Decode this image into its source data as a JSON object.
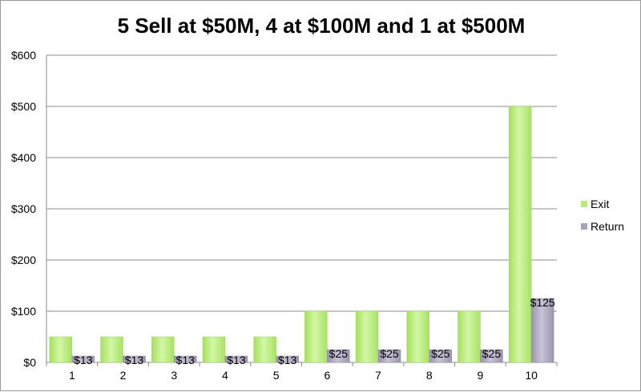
{
  "chart_data": {
    "type": "bar",
    "title": "5 Sell at $50M, 4 at $100M and 1 at $500M",
    "xlabel": "",
    "ylabel": "",
    "categories": [
      "1",
      "2",
      "3",
      "4",
      "5",
      "6",
      "7",
      "8",
      "9",
      "10"
    ],
    "series": [
      {
        "name": "Exit",
        "values": [
          50,
          50,
          50,
          50,
          50,
          100,
          100,
          100,
          100,
          500
        ],
        "color": "#b8ec7a"
      },
      {
        "name": "Return",
        "values": [
          12.5,
          12.5,
          12.5,
          12.5,
          12.5,
          25,
          25,
          25,
          25,
          125
        ],
        "labels": [
          "$13",
          "$13",
          "$13",
          "$13",
          "$13",
          "$25",
          "$25",
          "$25",
          "$25",
          "$125"
        ],
        "color": "#a9a1b8"
      }
    ],
    "ylim": [
      0,
      600
    ],
    "yticks": [
      0,
      100,
      200,
      300,
      400,
      500,
      600
    ],
    "ytick_labels": [
      "$0",
      "$100",
      "$200",
      "$300",
      "$400",
      "$500",
      "$600"
    ],
    "grid": true,
    "legend": "right"
  }
}
